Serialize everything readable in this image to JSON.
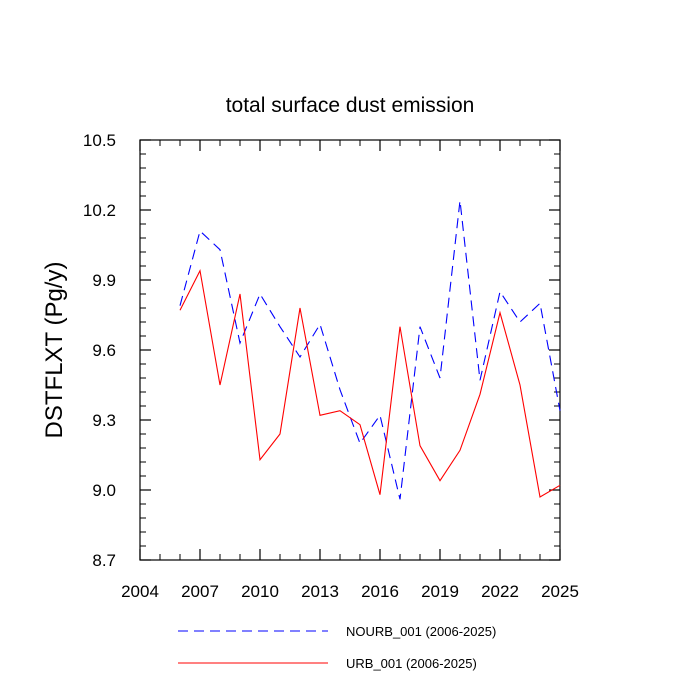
{
  "chart_data": {
    "type": "line",
    "title": "total surface dust emission",
    "xlabel": "",
    "ylabel": "DSTFLXT  (Pg/y)",
    "xlim": [
      2004,
      2025
    ],
    "ylim": [
      8.7,
      10.5
    ],
    "xticks": [
      "2004",
      "2007",
      "2010",
      "2013",
      "2016",
      "2019",
      "2022",
      "2025"
    ],
    "yticks": [
      "8.7",
      "9.0",
      "9.3",
      "9.6",
      "9.9",
      "10.2",
      "10.5"
    ],
    "grid": false,
    "legend": "bottom",
    "x": [
      2006,
      2007,
      2008,
      2009,
      2010,
      2011,
      2012,
      2013,
      2014,
      2015,
      2016,
      2017,
      2018,
      2019,
      2020,
      2021,
      2022,
      2023,
      2024,
      2025
    ],
    "series": [
      {
        "name": "NOURB_001 (2006-2025)",
        "color": "#0000ff",
        "dash": "dashed",
        "values": [
          9.79,
          10.11,
          10.03,
          9.63,
          9.84,
          9.7,
          9.57,
          9.71,
          9.43,
          9.2,
          9.32,
          8.96,
          9.7,
          9.48,
          10.24,
          9.47,
          9.85,
          9.72,
          9.8,
          9.34
        ]
      },
      {
        "name": "URB_001 (2006-2025)",
        "color": "#ff0000",
        "dash": "solid",
        "values": [
          9.77,
          9.94,
          9.45,
          9.84,
          9.13,
          9.24,
          9.78,
          9.32,
          9.34,
          9.28,
          8.98,
          9.7,
          9.19,
          9.04,
          9.17,
          9.41,
          9.76,
          9.45,
          8.97,
          9.02
        ]
      }
    ]
  }
}
